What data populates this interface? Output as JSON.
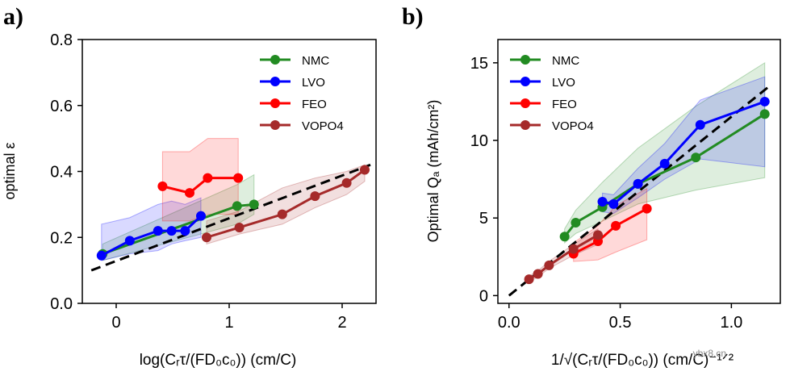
{
  "watermark": "ybx8.cn",
  "chart_data": [
    {
      "panel": "a)",
      "type": "line",
      "title": "",
      "xlabel": "log(Cᵣτ/(FD₀c₀)) (cm/C)",
      "ylabel": "optimal ε",
      "xlim": [
        -0.3,
        2.3
      ],
      "ylim": [
        0.0,
        0.8
      ],
      "xticks": [
        0,
        1,
        2
      ],
      "xtick_labels": [
        "0",
        "1",
        "2"
      ],
      "yticks": [
        0.0,
        0.2,
        0.4,
        0.6,
        0.8
      ],
      "ytick_labels": [
        "0.0",
        "0.2",
        "0.4",
        "0.6",
        "0.8"
      ],
      "legend": {
        "position": "top-right",
        "entries": [
          "NMC",
          "LVO",
          "FEO",
          "VOPO4"
        ]
      },
      "series": [
        {
          "name": "NMC",
          "color": "#228b22",
          "x": [
            -0.12,
            1.07,
            1.22
          ],
          "y": [
            0.15,
            0.295,
            0.3
          ],
          "band_upper": [
            0.18,
            0.36,
            0.39
          ],
          "band_lower": [
            0.13,
            0.24,
            0.27
          ]
        },
        {
          "name": "LVO",
          "color": "#0000ff",
          "x": [
            -0.13,
            0.12,
            0.37,
            0.49,
            0.61,
            0.75
          ],
          "y": [
            0.145,
            0.19,
            0.22,
            0.22,
            0.22,
            0.265
          ],
          "band_upper": [
            0.24,
            0.26,
            0.3,
            0.31,
            0.3,
            0.32
          ],
          "band_lower": [
            0.13,
            0.15,
            0.16,
            0.18,
            0.19,
            0.2
          ]
        },
        {
          "name": "FEO",
          "color": "#ff0000",
          "x": [
            0.41,
            0.65,
            0.81,
            1.08
          ],
          "y": [
            0.355,
            0.335,
            0.38,
            0.38
          ],
          "band_upper": [
            0.46,
            0.46,
            0.5,
            0.5
          ],
          "band_lower": [
            0.25,
            0.25,
            0.27,
            0.27
          ]
        },
        {
          "name": "VOPO4",
          "color": "#a52a2a",
          "x": [
            0.8,
            1.09,
            1.47,
            1.76,
            2.04,
            2.2
          ],
          "y": [
            0.2,
            0.23,
            0.27,
            0.325,
            0.365,
            0.405
          ],
          "band_upper": [
            0.25,
            0.28,
            0.35,
            0.38,
            0.4,
            0.42
          ],
          "band_lower": [
            0.18,
            0.21,
            0.24,
            0.29,
            0.33,
            0.37
          ]
        }
      ],
      "fit_line": {
        "style": "dashed",
        "color": "#000000",
        "x": [
          -0.22,
          2.25
        ],
        "y": [
          0.1,
          0.42
        ]
      }
    },
    {
      "panel": "b)",
      "type": "line",
      "title": "",
      "xlabel": "1/√(Cᵣτ/(FD₀c₀)) (cm/C)⁻¹ᐟ²",
      "ylabel": "Optimal Qₐ (mAh/cm²)",
      "xlim": [
        -0.05,
        1.22
      ],
      "ylim": [
        -0.5,
        16.5
      ],
      "xticks": [
        0.0,
        0.5,
        1.0
      ],
      "xtick_labels": [
        "0.0",
        "0.5",
        "1.0"
      ],
      "yticks": [
        0,
        5,
        10,
        15
      ],
      "ytick_labels": [
        "0",
        "5",
        "10",
        "15"
      ],
      "legend": {
        "position": "top-left",
        "entries": [
          "NMC",
          "LVO",
          "FEO",
          "VOPO4"
        ]
      },
      "series": [
        {
          "name": "NMC",
          "color": "#228b22",
          "x": [
            0.25,
            0.3,
            0.42,
            0.58,
            0.84,
            1.15
          ],
          "y": [
            3.8,
            4.7,
            5.7,
            7.2,
            8.9,
            11.7
          ],
          "band_upper": [
            4.3,
            5.5,
            7.3,
            9.5,
            12.2,
            15.0
          ],
          "band_lower": [
            3.4,
            4.0,
            4.8,
            5.9,
            6.8,
            7.6
          ]
        },
        {
          "name": "LVO",
          "color": "#0000ff",
          "x": [
            0.42,
            0.47,
            0.58,
            0.7,
            0.86,
            1.15
          ],
          "y": [
            6.05,
            5.9,
            7.2,
            8.5,
            11.0,
            12.5
          ],
          "band_upper": [
            6.6,
            6.5,
            8.2,
            9.8,
            12.6,
            14.1
          ],
          "band_lower": [
            5.4,
            5.3,
            6.3,
            7.5,
            8.8,
            8.3
          ]
        },
        {
          "name": "FEO",
          "color": "#ff0000",
          "x": [
            0.29,
            0.4,
            0.48,
            0.62
          ],
          "y": [
            2.7,
            3.5,
            4.5,
            5.6
          ],
          "band_upper": [
            3.4,
            4.5,
            5.8,
            6.9
          ],
          "band_lower": [
            2.2,
            2.3,
            2.8,
            3.6
          ]
        },
        {
          "name": "VOPO4",
          "color": "#a52a2a",
          "x": [
            0.09,
            0.13,
            0.18,
            0.29,
            0.4
          ],
          "y": [
            1.05,
            1.4,
            1.95,
            3.0,
            3.9
          ],
          "band_upper": [
            1.25,
            1.6,
            2.2,
            3.3,
            4.3
          ],
          "band_lower": [
            0.9,
            1.2,
            1.75,
            2.6,
            3.3
          ]
        }
      ],
      "fit_line": {
        "style": "dashed",
        "color": "#000000",
        "x": [
          0.0,
          1.18
        ],
        "y": [
          0.0,
          13.6
        ]
      }
    }
  ]
}
